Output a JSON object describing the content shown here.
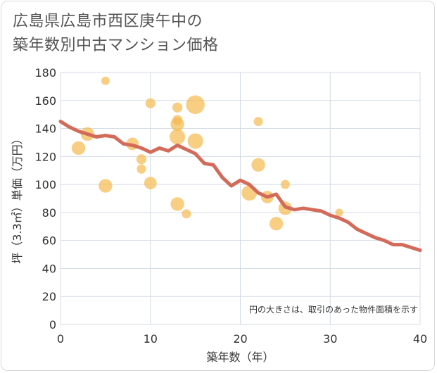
{
  "title_line1": "広島県広島市西区庚午中の",
  "title_line2": "築年数別中古マンション価格",
  "colors": {
    "bubble": "#f5b94f",
    "line": "#d36b5a",
    "grid": "#d4dce6",
    "plot_bg": "#ffffff"
  },
  "chart_data": {
    "type": "scatter",
    "xlabel": "築年数（年）",
    "ylabel": "坪（3.3㎡）単価（万円）",
    "note": "円の大きさは、取引のあった物件面積を示す",
    "xlim": [
      0,
      40
    ],
    "ylim": [
      0,
      180
    ],
    "xticks": [
      0,
      10,
      20,
      30,
      40
    ],
    "yticks": [
      0,
      20,
      40,
      60,
      80,
      100,
      120,
      140,
      160,
      180
    ],
    "scatter": [
      {
        "x": 2,
        "y": 126,
        "size": 3
      },
      {
        "x": 3,
        "y": 136,
        "size": 3
      },
      {
        "x": 5,
        "y": 174,
        "size": 1
      },
      {
        "x": 5,
        "y": 99,
        "size": 3
      },
      {
        "x": 8,
        "y": 129,
        "size": 2.5
      },
      {
        "x": 9,
        "y": 118,
        "size": 1.5
      },
      {
        "x": 9,
        "y": 111,
        "size": 1.2
      },
      {
        "x": 10,
        "y": 158,
        "size": 1.5
      },
      {
        "x": 10,
        "y": 101,
        "size": 2.5
      },
      {
        "x": 13,
        "y": 155,
        "size": 1.5
      },
      {
        "x": 13,
        "y": 146,
        "size": 1.5
      },
      {
        "x": 13,
        "y": 143,
        "size": 3
      },
      {
        "x": 13,
        "y": 134,
        "size": 4
      },
      {
        "x": 13,
        "y": 86,
        "size": 3
      },
      {
        "x": 14,
        "y": 79,
        "size": 1.2
      },
      {
        "x": 15,
        "y": 157,
        "size": 6
      },
      {
        "x": 15,
        "y": 131,
        "size": 4
      },
      {
        "x": 21,
        "y": 94,
        "size": 4
      },
      {
        "x": 22,
        "y": 145,
        "size": 1.2
      },
      {
        "x": 22,
        "y": 114,
        "size": 3
      },
      {
        "x": 23,
        "y": 91,
        "size": 2.5
      },
      {
        "x": 24,
        "y": 72,
        "size": 3
      },
      {
        "x": 25,
        "y": 100,
        "size": 1.2
      },
      {
        "x": 25,
        "y": 83,
        "size": 3
      },
      {
        "x": 31,
        "y": 80,
        "size": 0.8
      }
    ],
    "line": {
      "x": [
        0,
        1,
        2,
        3,
        4,
        5,
        6,
        7,
        8,
        9,
        10,
        11,
        12,
        13,
        14,
        15,
        16,
        17,
        18,
        19,
        20,
        21,
        22,
        23,
        24,
        25,
        26,
        27,
        28,
        29,
        30,
        31,
        32,
        33,
        34,
        35,
        36,
        37,
        38,
        39,
        40
      ],
      "y": [
        145,
        141,
        138,
        136,
        134,
        135,
        134,
        129,
        128,
        126,
        123,
        126,
        124,
        128,
        125,
        122,
        115,
        114,
        105,
        99,
        103,
        100,
        94,
        91,
        93,
        84,
        82,
        83,
        82,
        81,
        78,
        76,
        73,
        68,
        65,
        62,
        60,
        57,
        57,
        55,
        53
      ]
    }
  }
}
